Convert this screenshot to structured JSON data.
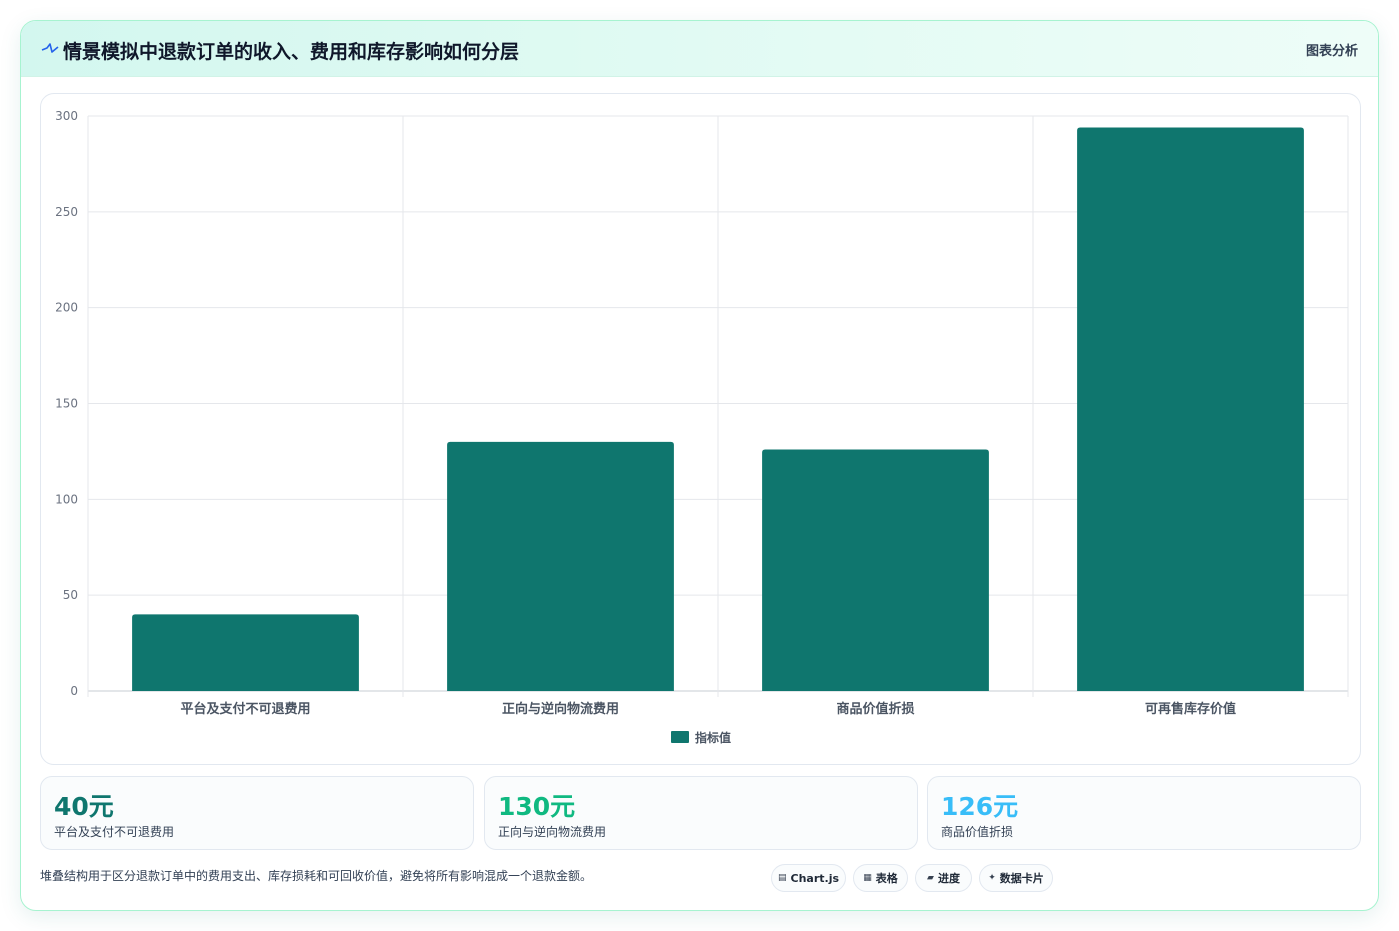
{
  "header": {
    "title": "情景模拟中退款订单的收入、费用和库存影响如何分层",
    "tag": "图表分析"
  },
  "chart_data": {
    "type": "bar",
    "categories": [
      "平台及支付不可退费用",
      "正向与逆向物流费用",
      "商品价值折损",
      "可再售库存价值"
    ],
    "series": [
      {
        "name": "指标值",
        "values": [
          40,
          130,
          126,
          294
        ]
      }
    ],
    "ylim": [
      0,
      300
    ],
    "yticks": [
      0,
      50,
      100,
      150,
      200,
      250,
      300
    ],
    "grid": true,
    "legend": "bottom",
    "color": "#0f766e"
  },
  "kpis": [
    {
      "value": "40元",
      "label": "平台及支付不可退费用",
      "color": "#0f766e"
    },
    {
      "value": "130元",
      "label": "正向与逆向物流费用",
      "color": "#10b981"
    },
    {
      "value": "126元",
      "label": "商品价值折损",
      "color": "#38bdf8"
    }
  ],
  "footnote": "堆叠结构用于区分退款订单中的费用支出、库存损耗和可回收价值，避免将所有影响混成一个退款金额。",
  "chips": [
    {
      "icon": "▤",
      "label": "Chart.js"
    },
    {
      "icon": "▦",
      "label": "表格"
    },
    {
      "icon": "▰",
      "label": "进度"
    },
    {
      "icon": "✦",
      "label": "数据卡片"
    }
  ]
}
